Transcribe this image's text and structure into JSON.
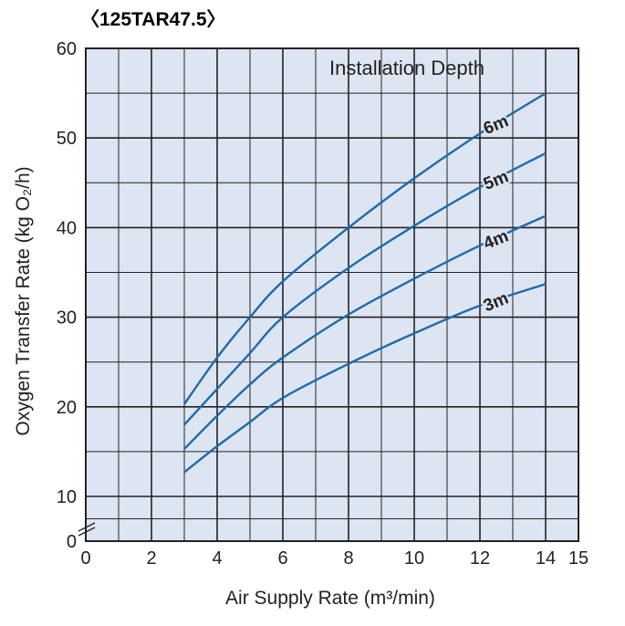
{
  "chart_data": {
    "type": "line",
    "title": "〈125TAR47.5〉",
    "legend_title": "Installation Depth",
    "xlabel": "Air Supply Rate  (m³/min)",
    "ylabel": "Oxygen Transfer Rate (kg O₂/h)",
    "xlim": [
      0,
      15
    ],
    "ylim": [
      0,
      60
    ],
    "y_axis_break": [
      0,
      10
    ],
    "xticks": [
      "0",
      "2",
      "4",
      "6",
      "8",
      "10",
      "12",
      "14",
      "15"
    ],
    "yticks": [
      "0",
      "10",
      "20",
      "30",
      "40",
      "50",
      "60"
    ],
    "grid": true,
    "colors": {
      "plot_bg": "#dde5f3",
      "line": "#1f6aaa",
      "grid": "#222222"
    },
    "x": [
      3,
      4,
      5,
      6,
      8,
      10,
      12,
      14
    ],
    "series": [
      {
        "name": "6m",
        "values": [
          20.3,
          25.5,
          30,
          34,
          40,
          45.5,
          50.5,
          55
        ]
      },
      {
        "name": "5m",
        "values": [
          18,
          22,
          26,
          30,
          35.5,
          40.2,
          44.5,
          48.3
        ]
      },
      {
        "name": "4m",
        "values": [
          15.3,
          19,
          22.5,
          25.5,
          30.3,
          34.3,
          38,
          41.3
        ]
      },
      {
        "name": "3m",
        "values": [
          12.7,
          15.6,
          18.3,
          21,
          24.8,
          28.2,
          31.3,
          33.7
        ]
      }
    ]
  }
}
